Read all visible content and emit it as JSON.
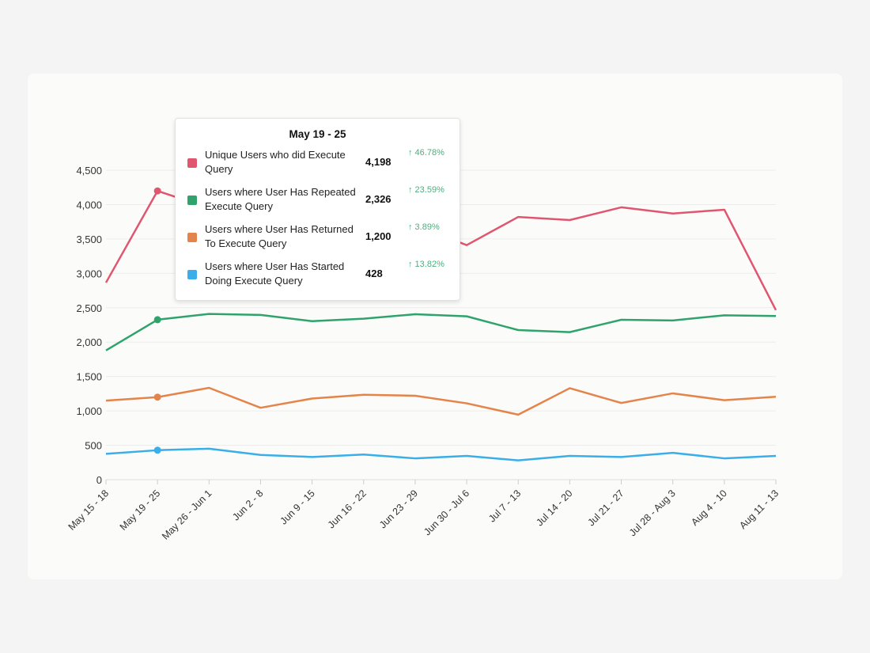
{
  "chart_data": {
    "type": "line",
    "categories": [
      "May 15 - 18",
      "May 19 - 25",
      "May 26 - Jun 1",
      "Jun 2 - 8",
      "Jun 9 - 15",
      "Jun 16 - 22",
      "Jun 23 - 29",
      "Jun 30 - Jul 6",
      "Jul 7 - 13",
      "Jul 14 - 20",
      "Jul 21 - 27",
      "Jul 28 - Aug 3",
      "Aug 4 - 10",
      "Aug 11 - 13"
    ],
    "ylim": [
      0,
      4500
    ],
    "yticks": [
      0,
      500,
      1000,
      1500,
      2000,
      2500,
      3000,
      3500,
      4000,
      4500
    ],
    "ytick_labels": [
      "0",
      "500",
      "1,000",
      "1,500",
      "2,000",
      "2,500",
      "3,000",
      "3,500",
      "4,000",
      "4,500"
    ],
    "grid": true,
    "series": [
      {
        "name": "Unique Users who did Execute Query",
        "color": "#e0566f",
        "values": [
          2865,
          4198,
          3950,
          3900,
          3800,
          3850,
          3700,
          3410,
          3820,
          3775,
          3960,
          3870,
          3925,
          2465
        ]
      },
      {
        "name": "Users where User Has Repeated Execute Query",
        "color": "#2fa36b",
        "values": [
          1880,
          2326,
          2410,
          2395,
          2305,
          2340,
          2405,
          2375,
          2175,
          2145,
          2325,
          2315,
          2390,
          2380
        ]
      },
      {
        "name": "Users where User Has Returned To Execute Query",
        "color": "#e5844a",
        "values": [
          1150,
          1200,
          1335,
          1045,
          1180,
          1235,
          1220,
          1110,
          945,
          1330,
          1115,
          1255,
          1155,
          1205
        ]
      },
      {
        "name": "Users where User Has Started Doing Execute Query",
        "color": "#3aaee8",
        "values": [
          375,
          428,
          450,
          360,
          330,
          365,
          310,
          345,
          280,
          345,
          330,
          390,
          310,
          345
        ]
      }
    ],
    "highlight_index": 1
  },
  "tooltip": {
    "title": "May 19 - 25",
    "rows": [
      {
        "label": "Unique Users who did Execute Query",
        "value": "4,198",
        "change": "↑ 46.78%"
      },
      {
        "label": "Users where User Has Repeated Execute Query",
        "value": "2,326",
        "change": "↑ 23.59%"
      },
      {
        "label": "Users where User Has Returned To Execute Query",
        "value": "1,200",
        "change": "↑ 3.89%"
      },
      {
        "label": "Users where User Has Started Doing Execute Query",
        "value": "428",
        "change": "↑ 13.82%"
      }
    ]
  }
}
